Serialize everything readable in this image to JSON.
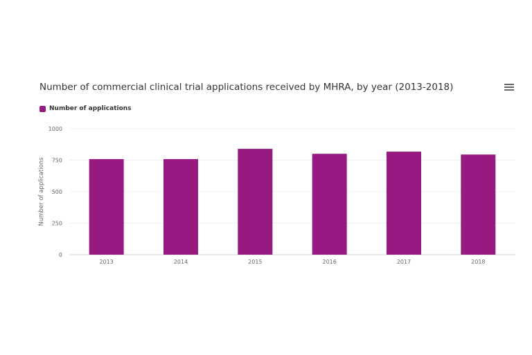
{
  "menu_icon": "hamburger-menu-icon",
  "chart_data": {
    "type": "bar",
    "title": "Number of commercial clinical trial applications received by MHRA, by year (2013-2018)",
    "xlabel": "",
    "ylabel": "Number of applications",
    "categories": [
      "2013",
      "2014",
      "2015",
      "2016",
      "2017",
      "2018"
    ],
    "series": [
      {
        "name": "Number of applications",
        "values": [
          759,
          759,
          840,
          801,
          818,
          795
        ],
        "color": "#961a80"
      }
    ],
    "ylim": [
      0,
      1000
    ],
    "yticks": [
      "0",
      "250",
      "500",
      "750",
      "1000"
    ],
    "grid": true,
    "legend_placement": "top-left"
  }
}
